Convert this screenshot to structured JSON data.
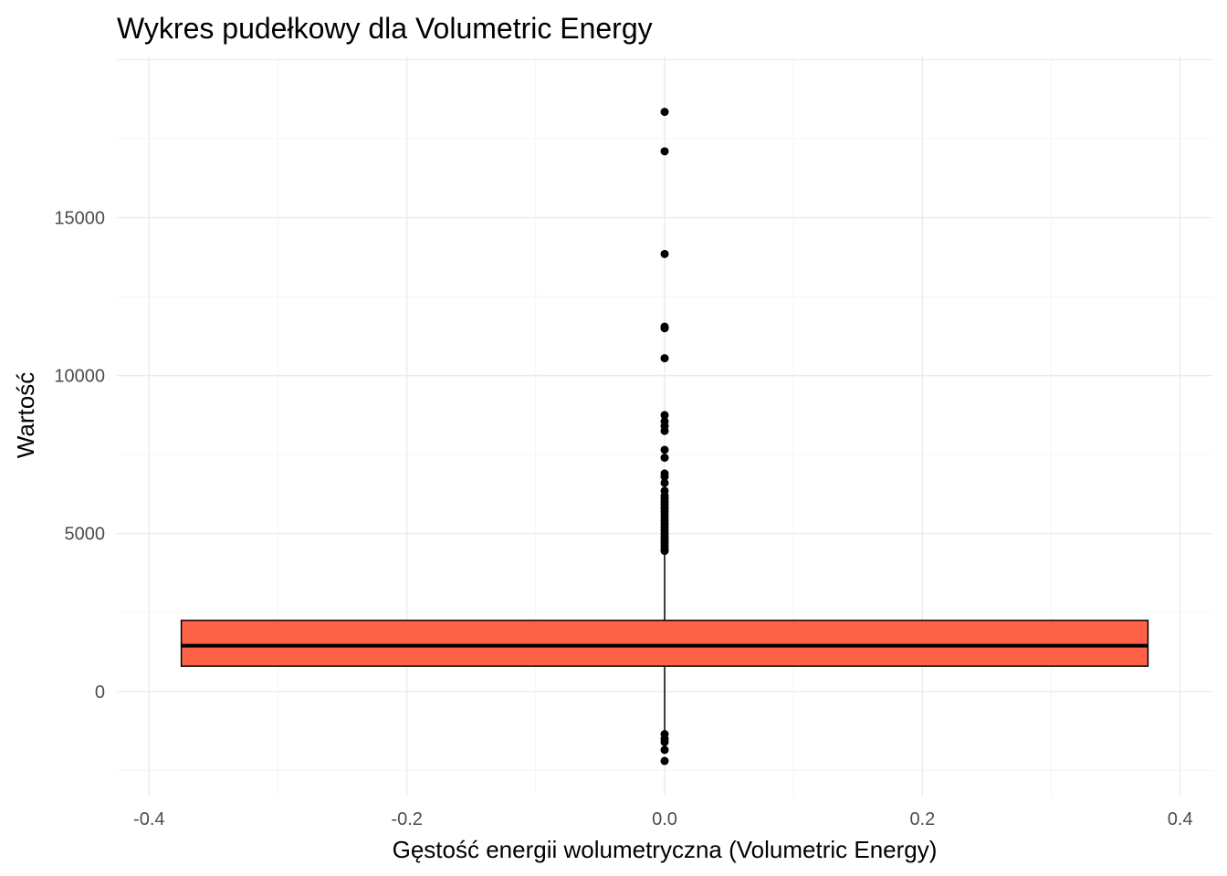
{
  "chart_data": {
    "type": "boxplot",
    "title": "Wykres pudełkowy dla Volumetric Energy",
    "xlabel": "Gęstość energii wolumetryczna (Volumetric Energy)",
    "ylabel": "Wartość",
    "xlim": [
      -0.425,
      0.425
    ],
    "ylim": [
      -3300,
      20100
    ],
    "x_ticks": [
      -0.4,
      -0.2,
      0.0,
      0.2,
      0.4
    ],
    "x_tick_labels": [
      "-0.4",
      "-0.2",
      "0.0",
      "0.2",
      "0.4"
    ],
    "y_ticks": [
      0,
      5000,
      10000,
      15000
    ],
    "y_tick_labels": [
      "0",
      "5000",
      "10000",
      "15000"
    ],
    "grid": true,
    "legend": "none",
    "box": {
      "x_center": 0.0,
      "x_left": -0.375,
      "x_right": 0.375,
      "q1": 800,
      "median": 1450,
      "q3": 2250,
      "whisker_low": -1300,
      "whisker_high": 4400,
      "fill": "#ff6347",
      "outline": "#000000"
    },
    "outliers": [
      18350,
      17100,
      13850,
      11550,
      11500,
      10550,
      8750,
      8550,
      8400,
      8250,
      7650,
      7400,
      6900,
      6800,
      6600,
      6350,
      6200,
      6100,
      6000,
      5900,
      5800,
      5700,
      5600,
      5500,
      5400,
      5300,
      5200,
      5100,
      5000,
      4900,
      4800,
      4700,
      4600,
      4500,
      4450,
      -1350,
      -1500,
      -1600,
      -1850,
      -2200
    ]
  }
}
